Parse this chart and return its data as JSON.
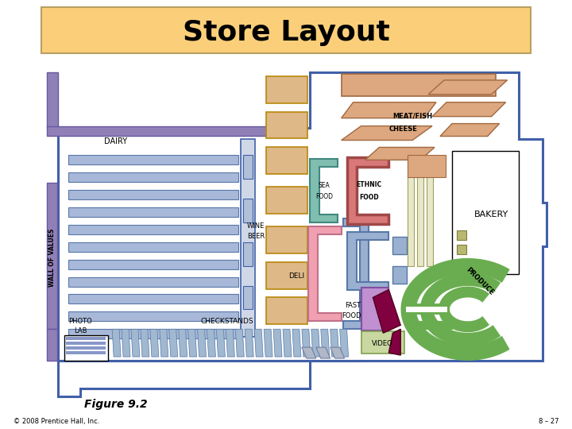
{
  "title": "Store Layout",
  "title_bg": "#FBCF7A",
  "title_edge": "#B8A060",
  "figure_label": "Figure 9.2",
  "copyright": "© 2008 Prentice Hall, Inc.",
  "slide_num": "8 – 27",
  "bg_color": "#FFFFFF",
  "blue": "#4060A8",
  "shelf_fill": "#A8B8D8",
  "shelf_edge": "#5878A8",
  "wood_fill": "#DEB887",
  "wood_edge": "#B8860B",
  "purple_fill": "#9080B8",
  "purple_edge": "#6858A0",
  "meat_fill": "#DDA880",
  "meat_edge": "#A06840",
  "teal_fill": "#80BEB0",
  "teal_edge": "#408880",
  "pink_fill": "#F0A0B0",
  "pink_edge": "#C07088",
  "ethnic_fill": "#D87878",
  "ethnic_edge": "#A04848",
  "blue_u_fill": "#9AB0D0",
  "blue_u_edge": "#5878A8",
  "green_produce": "#6AAD50",
  "maroon_ff": "#800040",
  "video_fill": "#C8D8A0",
  "video_edge": "#80A050",
  "bakery_bg": "#FFFFFF",
  "cream_fill": "#E8E8C8"
}
